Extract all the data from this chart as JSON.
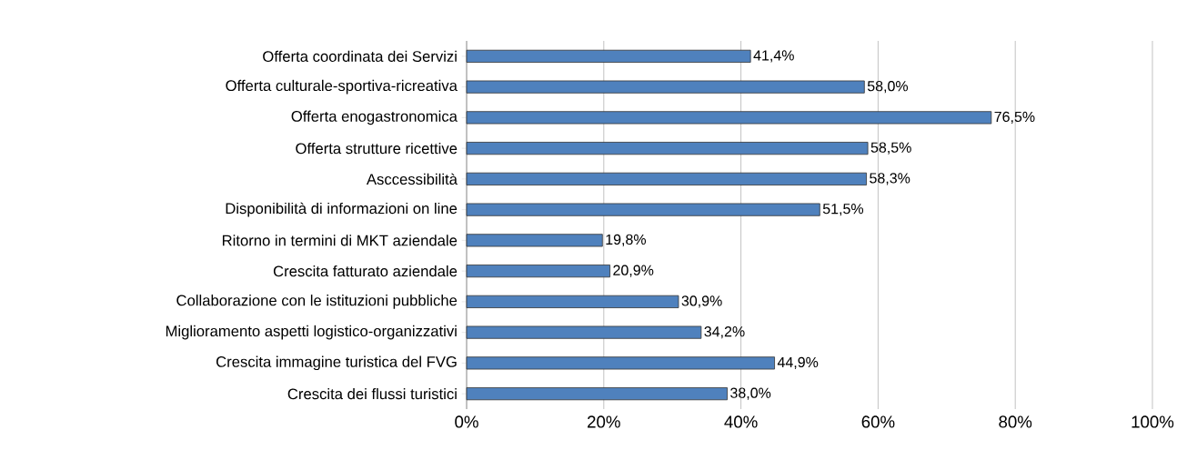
{
  "chart_data": {
    "type": "bar",
    "orientation": "horizontal",
    "categories": [
      "Offerta coordinata dei Servizi",
      "Offerta culturale-sportiva-ricreativa",
      "Offerta enogastronomica",
      "Offerta strutture ricettive",
      "Asccessibilità",
      "Disponibilità di informazioni on line",
      "Ritorno in termini di MKT aziendale",
      "Crescita fatturato aziendale",
      "Collaborazione con le istituzioni pubbliche",
      "Miglioramento aspetti logistico-organizzativi",
      "Crescita immagine turistica del FVG",
      "Crescita dei flussi turistici"
    ],
    "values": [
      41.4,
      58.0,
      76.5,
      58.5,
      58.3,
      51.5,
      19.8,
      20.9,
      30.9,
      34.2,
      44.9,
      38.0
    ],
    "value_labels": [
      "41,4%",
      "58,0%",
      "76,5%",
      "58,5%",
      "58,3%",
      "51,5%",
      "19,8%",
      "20,9%",
      "30,9%",
      "34,2%",
      "44,9%",
      "38,0%"
    ],
    "color": "#4f81bd",
    "xlim": [
      0,
      100
    ],
    "xticks": [
      {
        "value": 0,
        "label": "0%"
      },
      {
        "value": 20,
        "label": "20%"
      },
      {
        "value": 40,
        "label": "40%"
      },
      {
        "value": 60,
        "label": "60%"
      },
      {
        "value": 80,
        "label": "80%"
      },
      {
        "value": 100,
        "label": "100%"
      }
    ],
    "grid": "x"
  }
}
